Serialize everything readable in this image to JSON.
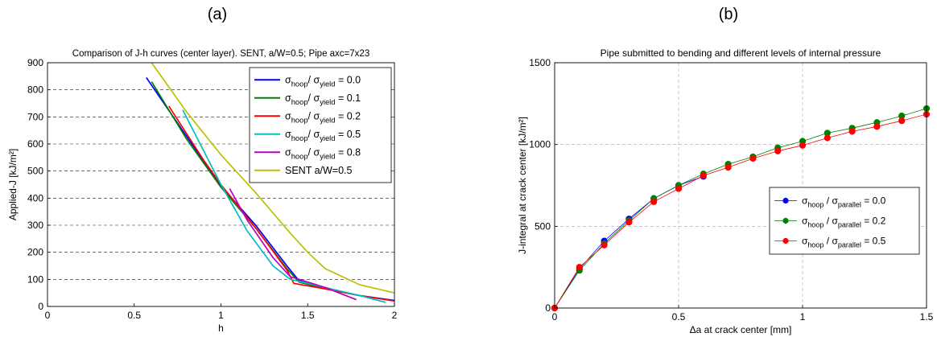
{
  "panels": {
    "a": {
      "label": "(a)"
    },
    "b": {
      "label": "(b)"
    }
  },
  "chart_data": [
    {
      "type": "line",
      "title": "Comparison of J-h curves (center layer). SENT, a/W=0.5; Pipe axc=7x23",
      "xlabel": "h",
      "ylabel": "Applied-J [kJ/m²]",
      "xlim": [
        0,
        2
      ],
      "ylim": [
        0,
        900
      ],
      "xticks": [
        "0",
        "0.5",
        "1",
        "1.5",
        "2"
      ],
      "yticks": [
        "0",
        "100",
        "200",
        "300",
        "400",
        "500",
        "600",
        "700",
        "800",
        "900"
      ],
      "grid": "horizontal dashed",
      "legend_position": "top-right",
      "series": [
        {
          "name": "σhoop/ σyield = 0.0",
          "legend": {
            "sym": "σ",
            "sub1": "hoop",
            "mid": "/ σ",
            "sub2": "yield",
            "value": " = 0.0"
          },
          "color": "#0000ff",
          "x": [
            0.57,
            0.8,
            1.0,
            1.2,
            1.38,
            1.45,
            1.6,
            1.8,
            2.0
          ],
          "y": [
            845,
            630,
            445,
            300,
            150,
            95,
            65,
            40,
            22
          ]
        },
        {
          "name": "σhoop/ σyield = 0.1",
          "legend": {
            "sym": "σ",
            "sub1": "hoop",
            "mid": "/ σ",
            "sub2": "yield",
            "value": " = 0.1"
          },
          "color": "#008000",
          "x": [
            0.6,
            0.8,
            1.0,
            1.2,
            1.38,
            1.45,
            1.6
          ],
          "y": [
            830,
            620,
            440,
            290,
            140,
            90,
            65
          ]
        },
        {
          "name": "σhoop/ σyield = 0.2",
          "legend": {
            "sym": "σ",
            "sub1": "hoop",
            "mid": "/ σ",
            "sub2": "yield",
            "value": " = 0.2"
          },
          "color": "#ff0000",
          "x": [
            0.7,
            0.9,
            1.0,
            1.2,
            1.38,
            1.42,
            1.6,
            1.8,
            2.0
          ],
          "y": [
            740,
            540,
            450,
            290,
            135,
            85,
            65,
            40,
            20
          ]
        },
        {
          "name": "σhoop/ σyield = 0.5",
          "legend": {
            "sym": "σ",
            "sub1": "hoop",
            "mid": "/ σ",
            "sub2": "yield",
            "value": " = 0.5"
          },
          "color": "#00bfbf",
          "x": [
            0.78,
            1.0,
            1.15,
            1.3,
            1.4,
            1.6,
            1.8,
            1.95
          ],
          "y": [
            725,
            450,
            280,
            150,
            100,
            70,
            40,
            15
          ]
        },
        {
          "name": "σhoop/ σyield = 0.8",
          "legend": {
            "sym": "σ",
            "sub1": "hoop",
            "mid": "/ σ",
            "sub2": "yield",
            "value": " = 0.8"
          },
          "color": "#bf00bf",
          "x": [
            1.05,
            1.15,
            1.3,
            1.4,
            1.5,
            1.6,
            1.78
          ],
          "y": [
            435,
            320,
            180,
            110,
            90,
            70,
            25
          ]
        },
        {
          "name": "SENT a/W=0.5",
          "legend": {
            "sym": "",
            "sub1": "",
            "mid": "",
            "sub2": "",
            "value": "SENT a/W=0.5"
          },
          "color": "#bfbf00",
          "x": [
            0.6,
            0.8,
            1.0,
            1.2,
            1.4,
            1.5,
            1.6,
            1.8,
            2.0
          ],
          "y": [
            900,
            720,
            560,
            420,
            270,
            200,
            140,
            80,
            50
          ]
        }
      ]
    },
    {
      "type": "line",
      "title": "Pipe submitted to bending and different levels of internal pressure",
      "xlabel": "Δa at crack center [mm]",
      "ylabel": "J-integral at crack center [kJ/m²]",
      "xlim": [
        0,
        1.5
      ],
      "ylim": [
        0,
        1500
      ],
      "xticks": [
        "0",
        "0.5",
        "1",
        "1.5"
      ],
      "yticks": [
        "0",
        "500",
        "1000",
        "1500"
      ],
      "grid": "dashed",
      "legend_position": "middle-right",
      "series": [
        {
          "name": "σ hoop / σ parallel = 0.0",
          "legend": {
            "sym": "σ",
            "sub1": "hoop",
            "mid": " / σ",
            "sub2": "parallel",
            "value": " = 0.0"
          },
          "color": "#0000ff",
          "x": [
            0,
            0.1,
            0.2,
            0.3,
            0.4,
            0.5,
            0.6
          ],
          "y": [
            0,
            240,
            410,
            545,
            670,
            750,
            805
          ]
        },
        {
          "name": "σ hoop / σ parallel = 0.2",
          "legend": {
            "sym": "σ",
            "sub1": "hoop",
            "mid": " / σ",
            "sub2": "parallel",
            "value": " = 0.2"
          },
          "color": "#008000",
          "x": [
            0,
            0.1,
            0.2,
            0.3,
            0.4,
            0.5,
            0.6,
            0.7,
            0.8,
            0.9,
            1.0,
            1.1,
            1.2,
            1.3,
            1.4,
            1.5
          ],
          "y": [
            0,
            230,
            395,
            535,
            670,
            750,
            820,
            880,
            925,
            980,
            1020,
            1070,
            1100,
            1135,
            1175,
            1220
          ]
        },
        {
          "name": "σ hoop / σ parallel = 0.5",
          "legend": {
            "sym": "σ",
            "sub1": "hoop",
            "mid": " / σ",
            "sub2": "parallel",
            "value": " = 0.5"
          },
          "color": "#ff0000",
          "x": [
            0,
            0.1,
            0.2,
            0.3,
            0.4,
            0.5,
            0.6,
            0.7,
            0.8,
            0.9,
            1.0,
            1.1,
            1.2,
            1.3,
            1.4,
            1.5
          ],
          "y": [
            0,
            250,
            385,
            525,
            650,
            730,
            810,
            860,
            915,
            960,
            995,
            1040,
            1080,
            1110,
            1145,
            1185
          ]
        }
      ]
    }
  ]
}
